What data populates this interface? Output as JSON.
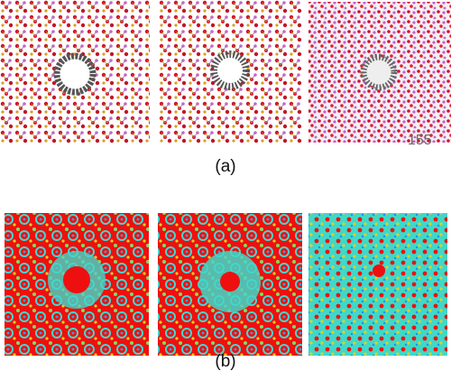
{
  "figure": {
    "row_a": {
      "label": "(a)",
      "annotation": "155"
    },
    "row_b": {
      "label": "(b)"
    }
  }
}
